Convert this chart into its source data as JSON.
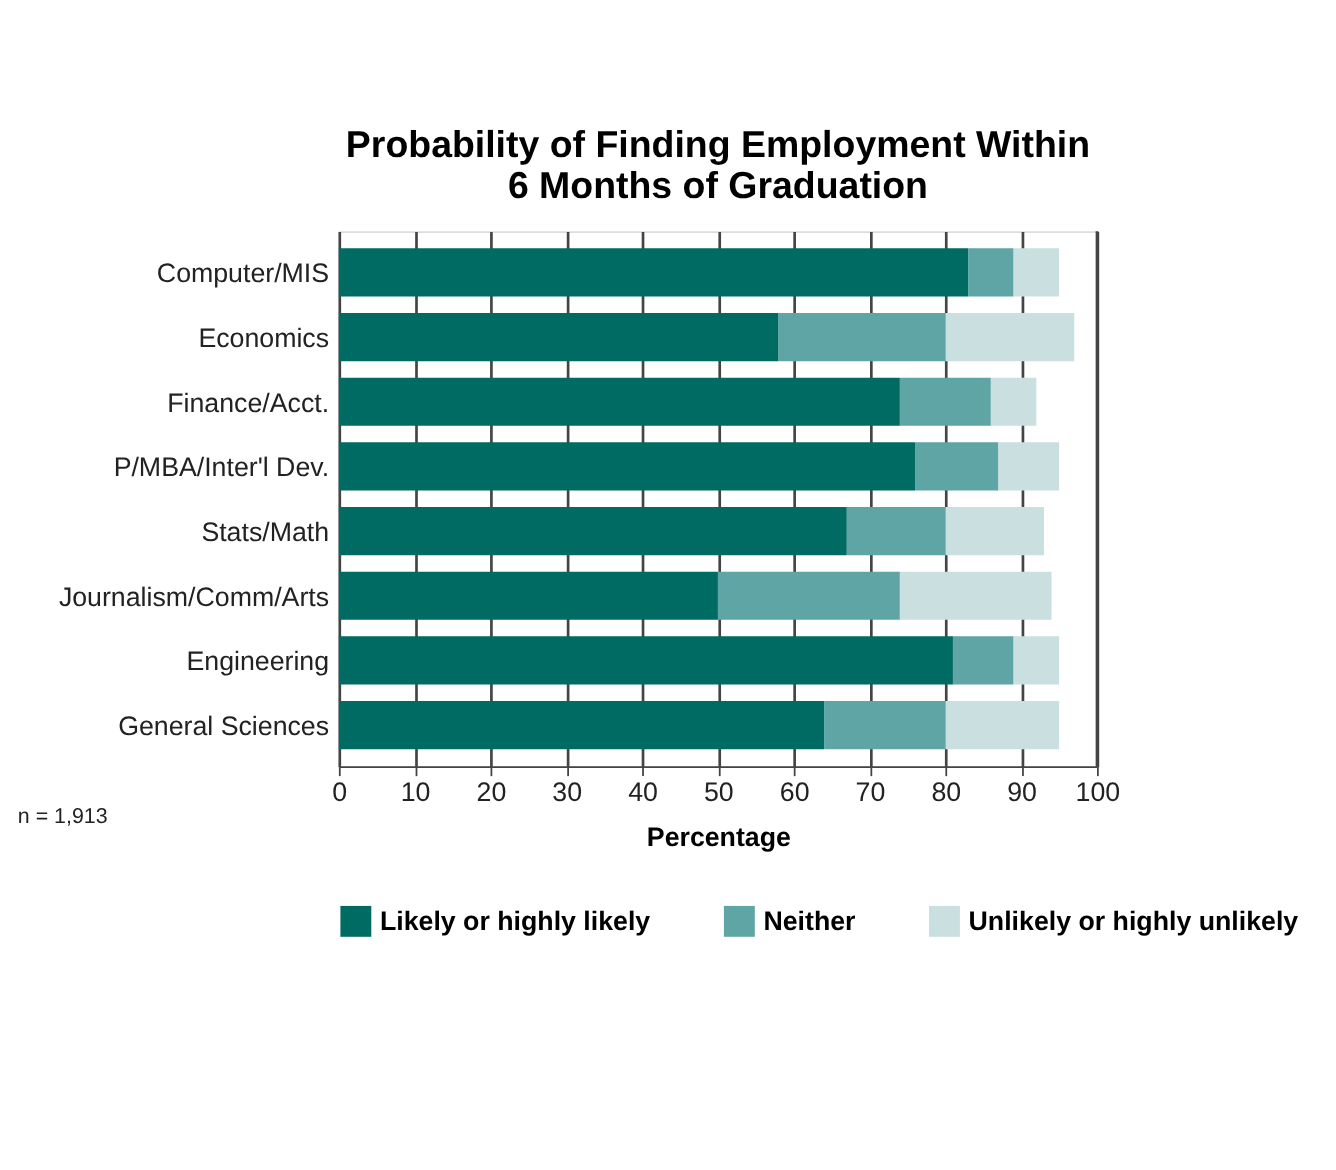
{
  "chart_data": {
    "type": "bar",
    "orientation": "horizontal",
    "stacked": true,
    "title": "Probability of Finding Employment Within\n6 Months of Graduation",
    "xlabel": "Percentage",
    "categories": [
      "Computer/MIS",
      "Economics",
      "Finance/Acct.",
      "P/MBA/Inter'l Dev.",
      "Stats/Math",
      "Journalism/Comm/Arts",
      "Engineering",
      "General Sciences"
    ],
    "series": [
      {
        "name": "Likely or highly likely",
        "color": "#006b63",
        "values": [
          83,
          58,
          74,
          76,
          67,
          50,
          81,
          64
        ]
      },
      {
        "name": "Neither",
        "color": "#5fa5a5",
        "values": [
          6,
          22,
          12,
          11,
          13,
          24,
          8,
          16
        ]
      },
      {
        "name": "Unlikely or highly unlikely",
        "color": "#c9dfe0",
        "values": [
          6,
          17,
          6,
          8,
          13,
          20,
          6,
          15
        ]
      }
    ],
    "xlim": [
      0,
      100
    ],
    "xticks": [
      0,
      10,
      20,
      30,
      40,
      50,
      60,
      70,
      80,
      90,
      100
    ],
    "grid": "x",
    "legend": "bottom",
    "annotations": [
      "n = 1,913"
    ]
  }
}
